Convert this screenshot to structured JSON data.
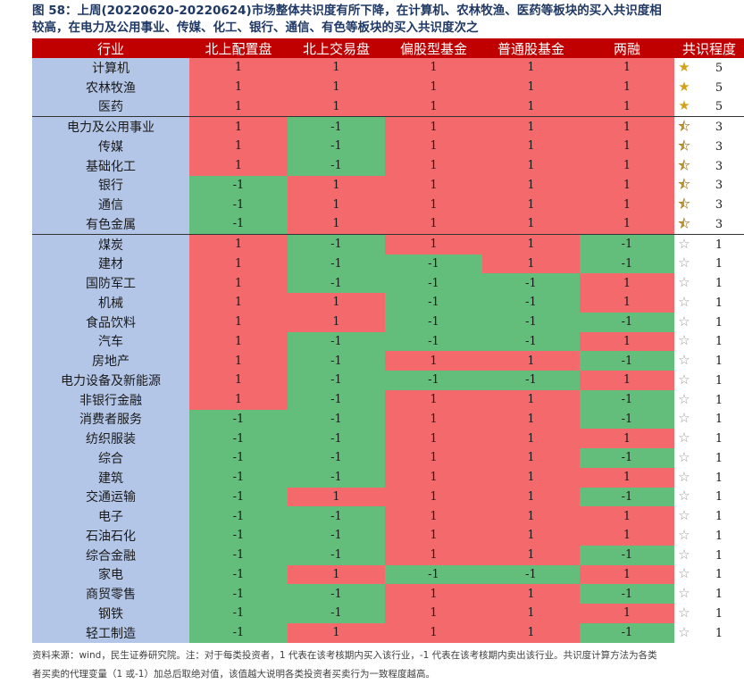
{
  "title": {
    "line1": "图 58：上周(20220620-20220624)市场整体共识度有所下降，在计算机、农林牧渔、医药等板块的买入共识度相",
    "line2": "较高，在电力及公用事业、传媒、化工、银行、通信、有色等板块的买入共识度次之"
  },
  "headers": [
    "行业",
    "北上配置盘",
    "北上交易盘",
    "偏股型基金",
    "普通股基金",
    "两融",
    "共识程度"
  ],
  "rows": [
    {
      "industry": "计算机",
      "values": [
        "1",
        "1",
        "1",
        "1",
        "1"
      ],
      "consensus": "5",
      "star": "full",
      "sep": false
    },
    {
      "industry": "农林牧渔",
      "values": [
        "1",
        "1",
        "1",
        "1",
        "1"
      ],
      "consensus": "5",
      "star": "full",
      "sep": false
    },
    {
      "industry": "医药",
      "values": [
        "1",
        "1",
        "1",
        "1",
        "1"
      ],
      "consensus": "5",
      "star": "full",
      "sep": false
    },
    {
      "industry": "电力及公用事业",
      "values": [
        "1",
        "-1",
        "1",
        "1",
        "1"
      ],
      "consensus": "3",
      "star": "half",
      "sep": true
    },
    {
      "industry": "传媒",
      "values": [
        "1",
        "-1",
        "1",
        "1",
        "1"
      ],
      "consensus": "3",
      "star": "half",
      "sep": false
    },
    {
      "industry": "基础化工",
      "values": [
        "1",
        "-1",
        "1",
        "1",
        "1"
      ],
      "consensus": "3",
      "star": "half",
      "sep": false
    },
    {
      "industry": "银行",
      "values": [
        "-1",
        "1",
        "1",
        "1",
        "1"
      ],
      "consensus": "3",
      "star": "half",
      "sep": false
    },
    {
      "industry": "通信",
      "values": [
        "-1",
        "1",
        "1",
        "1",
        "1"
      ],
      "consensus": "3",
      "star": "half",
      "sep": false
    },
    {
      "industry": "有色金属",
      "values": [
        "-1",
        "1",
        "1",
        "1",
        "1"
      ],
      "consensus": "3",
      "star": "half",
      "sep": false
    },
    {
      "industry": "煤炭",
      "values": [
        "1",
        "-1",
        "1",
        "1",
        "-1"
      ],
      "consensus": "1",
      "star": "empty",
      "sep": true
    },
    {
      "industry": "建材",
      "values": [
        "1",
        "-1",
        "-1",
        "1",
        "-1"
      ],
      "consensus": "1",
      "star": "empty",
      "sep": false
    },
    {
      "industry": "国防军工",
      "values": [
        "1",
        "-1",
        "-1",
        "-1",
        "1"
      ],
      "consensus": "1",
      "star": "empty",
      "sep": false
    },
    {
      "industry": "机械",
      "values": [
        "1",
        "1",
        "-1",
        "-1",
        "1"
      ],
      "consensus": "1",
      "star": "empty",
      "sep": false
    },
    {
      "industry": "食品饮料",
      "values": [
        "1",
        "1",
        "-1",
        "-1",
        "-1"
      ],
      "consensus": "1",
      "star": "empty",
      "sep": false
    },
    {
      "industry": "汽车",
      "values": [
        "1",
        "-1",
        "-1",
        "-1",
        "1"
      ],
      "consensus": "1",
      "star": "empty",
      "sep": false
    },
    {
      "industry": "房地产",
      "values": [
        "1",
        "-1",
        "1",
        "1",
        "-1"
      ],
      "consensus": "1",
      "star": "empty",
      "sep": false
    },
    {
      "industry": "电力设备及新能源",
      "values": [
        "1",
        "-1",
        "-1",
        "-1",
        "1"
      ],
      "consensus": "1",
      "star": "empty",
      "sep": false
    },
    {
      "industry": "非银行金融",
      "values": [
        "1",
        "-1",
        "1",
        "1",
        "-1"
      ],
      "consensus": "1",
      "star": "empty",
      "sep": false
    },
    {
      "industry": "消费者服务",
      "values": [
        "-1",
        "-1",
        "1",
        "1",
        "-1"
      ],
      "consensus": "1",
      "star": "empty",
      "sep": false
    },
    {
      "industry": "纺织服装",
      "values": [
        "-1",
        "-1",
        "1",
        "1",
        "1"
      ],
      "consensus": "1",
      "star": "empty",
      "sep": false
    },
    {
      "industry": "综合",
      "values": [
        "-1",
        "-1",
        "1",
        "1",
        "-1"
      ],
      "consensus": "1",
      "star": "empty",
      "sep": false
    },
    {
      "industry": "建筑",
      "values": [
        "-1",
        "-1",
        "1",
        "1",
        "1"
      ],
      "consensus": "1",
      "star": "empty",
      "sep": false
    },
    {
      "industry": "交通运输",
      "values": [
        "-1",
        "1",
        "1",
        "1",
        "-1"
      ],
      "consensus": "1",
      "star": "empty",
      "sep": false
    },
    {
      "industry": "电子",
      "values": [
        "-1",
        "-1",
        "1",
        "1",
        "1"
      ],
      "consensus": "1",
      "star": "empty",
      "sep": false
    },
    {
      "industry": "石油石化",
      "values": [
        "-1",
        "-1",
        "1",
        "1",
        "1"
      ],
      "consensus": "1",
      "star": "empty",
      "sep": false
    },
    {
      "industry": "综合金融",
      "values": [
        "-1",
        "-1",
        "1",
        "1",
        "-1"
      ],
      "consensus": "1",
      "star": "empty",
      "sep": false
    },
    {
      "industry": "家电",
      "values": [
        "-1",
        "1",
        "-1",
        "-1",
        "1"
      ],
      "consensus": "1",
      "star": "empty",
      "sep": false
    },
    {
      "industry": "商贸零售",
      "values": [
        "-1",
        "-1",
        "1",
        "1",
        "-1"
      ],
      "consensus": "1",
      "star": "empty",
      "sep": false
    },
    {
      "industry": "钢铁",
      "values": [
        "-1",
        "-1",
        "1",
        "1",
        "1"
      ],
      "consensus": "1",
      "star": "empty",
      "sep": false
    },
    {
      "industry": "轻工制造",
      "values": [
        "-1",
        "1",
        "1",
        "1",
        "-1"
      ],
      "consensus": "1",
      "star": "empty",
      "sep": false
    }
  ],
  "colors": {
    "buy": "#f4696b",
    "sell": "#63be7b",
    "industry_bg": "#b4c6e7",
    "header_bg": "#c00000"
  },
  "source": {
    "line1": "资料来源：wind，民生证券研究院。注：对于每类投资者，1 代表在该考核期内买入该行业，-1 代表在该考核期内卖出该行业。共识度计算方法为各类",
    "line2": "者买卖的代理变量（1 或-1）加总后取绝对值，该值越大说明各类投资者买卖行为一致程度越高。"
  }
}
